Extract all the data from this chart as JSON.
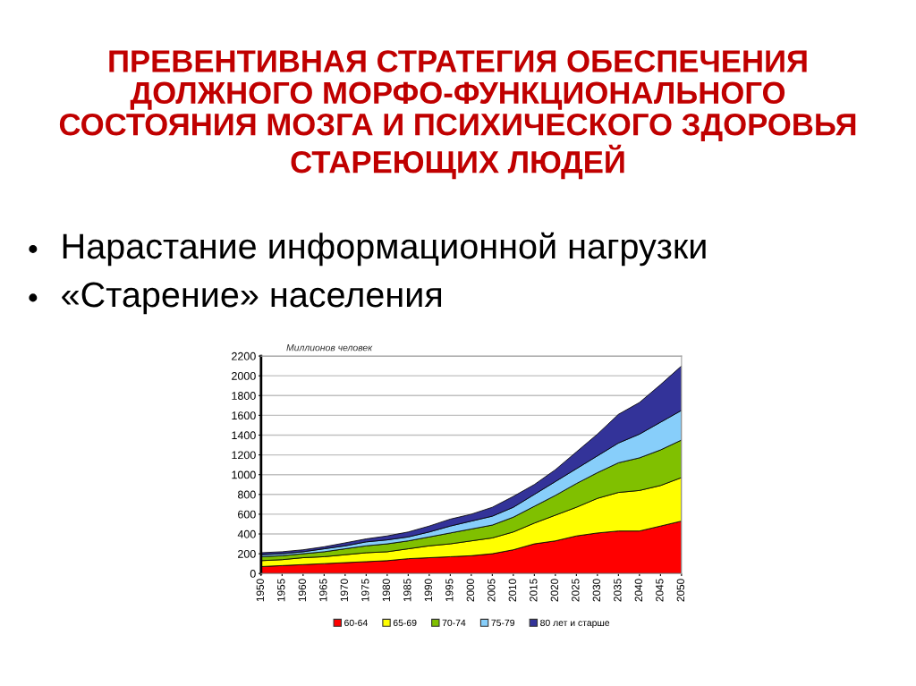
{
  "chart_data": {
    "type": "area",
    "stacked": true,
    "title": "ПРЕВЕНТИВНАЯ СТРАТЕГИЯ ОБЕСПЕЧЕНИЯ\nДОЛЖНОГО МОРФО-ФУНКЦИОНАЛЬНОГО\nСОСТОЯНИЯ МОЗГА И ПСИХИЧЕСКОГО ЗДОРОВЬЯ\nСТАРЕЮЩИХ ЛЮДЕЙ",
    "annotations": [
      "Нарастание информационной нагрузки",
      "«Старение» населения"
    ],
    "ylabel": "Миллионов человек",
    "categories": [
      "1950",
      "1955",
      "1960",
      "1965",
      "1970",
      "1975",
      "1980",
      "1985",
      "1990",
      "1995",
      "2000",
      "2005",
      "2010",
      "2015",
      "2020",
      "2025",
      "2030",
      "2035",
      "2040",
      "2045",
      "2050"
    ],
    "series": [
      {
        "name": "60-64",
        "color": "#ff0000",
        "values": [
          70,
          80,
          90,
          100,
          110,
          120,
          130,
          150,
          160,
          170,
          180,
          200,
          240,
          300,
          330,
          380,
          410,
          430,
          430,
          480,
          530
        ]
      },
      {
        "name": "65-69",
        "color": "#ffff00",
        "values": [
          60,
          60,
          70,
          70,
          80,
          90,
          90,
          100,
          120,
          130,
          150,
          160,
          180,
          210,
          260,
          290,
          350,
          390,
          410,
          410,
          440
        ]
      },
      {
        "name": "70-74",
        "color": "#80c000",
        "values": [
          40,
          40,
          40,
          50,
          60,
          70,
          80,
          80,
          90,
          110,
          120,
          130,
          150,
          170,
          200,
          240,
          260,
          300,
          330,
          360,
          380
        ]
      },
      {
        "name": "75-79",
        "color": "#87cefa",
        "values": [
          20,
          20,
          20,
          30,
          30,
          40,
          40,
          40,
          50,
          70,
          80,
          90,
          100,
          120,
          140,
          150,
          170,
          200,
          240,
          280,
          300
        ]
      },
      {
        "name": "80 лет и старше",
        "color": "#333399",
        "values": [
          20,
          20,
          20,
          20,
          30,
          30,
          40,
          50,
          60,
          70,
          70,
          90,
          110,
          100,
          120,
          170,
          220,
          290,
          320,
          380,
          450
        ]
      }
    ],
    "ylim": [
      0,
      2200
    ],
    "yticks": [
      0,
      200,
      400,
      600,
      800,
      1000,
      1200,
      1400,
      1600,
      1800,
      2000,
      2200
    ],
    "grid": "y",
    "legend": "bottom"
  }
}
